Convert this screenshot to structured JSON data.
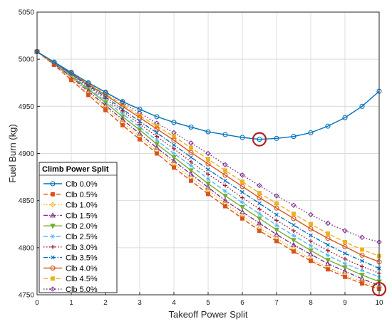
{
  "chart_data": {
    "type": "line",
    "xlabel": "Takeoff Power Split",
    "ylabel": "Fuel Burn (kg)",
    "xlim": [
      0,
      10
    ],
    "ylim": [
      4750,
      5050
    ],
    "xticks": [
      0,
      1,
      2,
      3,
      4,
      5,
      6,
      7,
      8,
      9,
      10
    ],
    "yticks": [
      4750,
      4800,
      4850,
      4900,
      4950,
      5000,
      5050
    ],
    "grid": true,
    "legend_title": "Climb Power Split",
    "legend_placement": "bottom-left",
    "x": [
      0,
      0.5,
      1,
      1.5,
      2,
      2.5,
      3,
      3.5,
      4,
      4.5,
      5,
      5.5,
      6,
      6.5,
      7,
      7.5,
      8,
      8.5,
      9,
      9.5,
      10
    ],
    "series": [
      {
        "name": "Clb 0.0%",
        "color": "#0072BD",
        "marker": "circle",
        "dash": "solid",
        "values": [
          5008,
          4997,
          4986,
          4975,
          4965,
          4955,
          4947,
          4939,
          4933,
          4928,
          4923,
          4920,
          4917,
          4915,
          4916,
          4918,
          4922,
          4929,
          4938,
          4950,
          4966
        ]
      },
      {
        "name": "Clb 0.5%",
        "color": "#D95319",
        "marker": "square",
        "dash": "dash",
        "values": [
          5008,
          4994,
          4978,
          4962,
          4946,
          4930,
          4915,
          4900,
          4885,
          4871,
          4857,
          4844,
          4831,
          4818,
          4807,
          4796,
          4786,
          4777,
          4769,
          4762,
          4756
        ]
      },
      {
        "name": "Clb 1.0%",
        "color": "#EDB120",
        "marker": "diamond",
        "dash": "dot",
        "values": [
          5008,
          4995,
          4980,
          4964,
          4949,
          4933,
          4918,
          4903,
          4889,
          4874,
          4861,
          4847,
          4834,
          4821,
          4810,
          4799,
          4788,
          4779,
          4771,
          4764,
          4758
        ]
      },
      {
        "name": "Clb 1.5%",
        "color": "#7E2F8E",
        "marker": "triangle-up",
        "dash": "dashdot",
        "values": [
          5008,
          4995,
          4981,
          4966,
          4951,
          4936,
          4921,
          4906,
          4892,
          4878,
          4864,
          4850,
          4838,
          4826,
          4814,
          4803,
          4793,
          4783,
          4775,
          4767,
          4760
        ]
      },
      {
        "name": "Clb 2.0%",
        "color": "#77AC30",
        "marker": "triangle-down",
        "dash": "solid",
        "values": [
          5008,
          4995,
          4982,
          4968,
          4954,
          4939,
          4925,
          4910,
          4896,
          4882,
          4868,
          4855,
          4843,
          4831,
          4819,
          4808,
          4797,
          4787,
          4779,
          4771,
          4764
        ]
      },
      {
        "name": "Clb 2.5%",
        "color": "#4DBEEE",
        "marker": "asterisk",
        "dash": "dash",
        "values": [
          5008,
          4996,
          4983,
          4969,
          4956,
          4942,
          4928,
          4914,
          4900,
          4887,
          4873,
          4860,
          4848,
          4836,
          4824,
          4813,
          4802,
          4792,
          4783,
          4776,
          4769
        ]
      },
      {
        "name": "Clb 3.0%",
        "color": "#A2142F",
        "marker": "plus",
        "dash": "dot",
        "values": [
          5008,
          4996,
          4984,
          4971,
          4958,
          4945,
          4931,
          4918,
          4905,
          4891,
          4878,
          4866,
          4853,
          4841,
          4829,
          4818,
          4807,
          4797,
          4788,
          4780,
          4773
        ]
      },
      {
        "name": "Clb 3.5%",
        "color": "#0072BD",
        "marker": "x",
        "dash": "dashdot",
        "values": [
          5008,
          4996,
          4984,
          4972,
          4960,
          4947,
          4934,
          4922,
          4909,
          4896,
          4883,
          4871,
          4859,
          4847,
          4835,
          4824,
          4813,
          4803,
          4794,
          4786,
          4778
        ]
      },
      {
        "name": "Clb 4.0%",
        "color": "#D95319",
        "marker": "circle",
        "dash": "solid",
        "values": [
          5008,
          4996,
          4985,
          4973,
          4962,
          4950,
          4938,
          4926,
          4914,
          4901,
          4889,
          4877,
          4865,
          4853,
          4842,
          4831,
          4820,
          4810,
          4801,
          4792,
          4785
        ]
      },
      {
        "name": "Clb 4.5%",
        "color": "#EDB120",
        "marker": "square",
        "dash": "dash",
        "values": [
          5008,
          4996,
          4985,
          4974,
          4963,
          4952,
          4940,
          4929,
          4918,
          4906,
          4894,
          4882,
          4870,
          4858,
          4847,
          4836,
          4825,
          4815,
          4806,
          4798,
          4791
        ]
      },
      {
        "name": "Clb 5.0%",
        "color": "#7E2F8E",
        "marker": "diamond",
        "dash": "dot",
        "values": [
          5008,
          4996,
          4986,
          4975,
          4965,
          4954,
          4943,
          4932,
          4922,
          4911,
          4900,
          4888,
          4877,
          4866,
          4855,
          4845,
          4835,
          4826,
          4818,
          4811,
          4806
        ]
      }
    ],
    "annotations": [
      {
        "kind": "circle-highlight",
        "color": "#B22222",
        "x": 6.5,
        "y": 4915
      },
      {
        "kind": "circle-highlight",
        "color": "#B22222",
        "x": 10,
        "y": 4756
      }
    ]
  }
}
